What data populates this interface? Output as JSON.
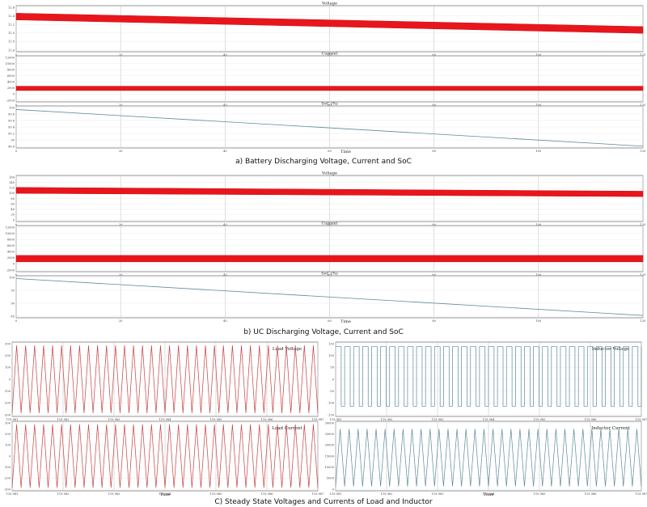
{
  "captions": {
    "a": "a) Battery Discharging Voltage, Current and SoC",
    "b": "b) UC Discharging Voltage, Current and SoC",
    "c": "C) Steady State Voltages and Currents of Load and Inductor"
  },
  "colors": {
    "trace_red": "#e8161c",
    "trace_teal": "#5b8c95",
    "trace_pink": "#c84040",
    "grid": "#c8c8c8",
    "frame": "#7a7a7a"
  },
  "chart_data": [
    {
      "id": "a-voltage",
      "type": "area",
      "title": "Voltage",
      "xlabel": "",
      "y_ticks": [
        "12.6",
        "12.4",
        "12.2",
        "12.0",
        "11.8",
        "11.6"
      ],
      "ylim": [
        11.6,
        12.7
      ],
      "x_ticks": [
        "0",
        "20",
        "40",
        "60",
        "80",
        "100",
        "120"
      ],
      "xlim": [
        0,
        120
      ],
      "band": {
        "x": [
          0,
          120
        ],
        "upper": [
          12.52,
          12.2
        ],
        "lower": [
          12.36,
          12.04
        ]
      }
    },
    {
      "id": "a-current",
      "type": "area",
      "title": "Current",
      "xlabel": "",
      "y_ticks": [
        "12000",
        "10000",
        "8000",
        "6000",
        "4000",
        "2000",
        "0",
        "-2000"
      ],
      "ylim": [
        -2500,
        12500
      ],
      "x_ticks": [
        "0",
        "20",
        "40",
        "60",
        "80",
        "100",
        "120"
      ],
      "xlim": [
        0,
        120
      ],
      "band": {
        "x": [
          0,
          120
        ],
        "upper": [
          2600,
          2600
        ],
        "lower": [
          1200,
          1200
        ]
      }
    },
    {
      "id": "a-soc",
      "type": "line",
      "title": "SoC (%)",
      "xlabel": "Time",
      "y_ticks": [
        "100",
        "99.8",
        "99.6",
        "99.4",
        "99.2",
        "99",
        "98.8"
      ],
      "ylim": [
        98.7,
        100.1
      ],
      "x_ticks": [
        "0",
        "20",
        "40",
        "60",
        "80",
        "100",
        "120"
      ],
      "xlim": [
        0,
        120
      ],
      "series": [
        {
          "x": [
            0,
            120
          ],
          "values": [
            99.98,
            98.76
          ]
        }
      ]
    },
    {
      "id": "b-voltage",
      "type": "area",
      "title": "Voltage",
      "xlabel": "",
      "y_ticks": [
        "160",
        "140",
        "120",
        "100",
        "80",
        "60",
        "40",
        "20",
        "0"
      ],
      "ylim": [
        0,
        170
      ],
      "x_ticks": [
        "0",
        "20",
        "40",
        "60",
        "80",
        "100",
        "120"
      ],
      "xlim": [
        0,
        120
      ],
      "band": {
        "x": [
          0,
          120
        ],
        "upper": [
          126,
          112
        ],
        "lower": [
          104,
          92
        ]
      }
    },
    {
      "id": "b-current",
      "type": "area",
      "title": "Current",
      "xlabel": "",
      "y_ticks": [
        "12000",
        "10000",
        "8000",
        "6000",
        "4000",
        "2000",
        "0",
        "-2000"
      ],
      "ylim": [
        -2500,
        12500
      ],
      "x_ticks": [
        "0",
        "20",
        "40",
        "60",
        "80",
        "100",
        "120"
      ],
      "xlim": [
        0,
        120
      ],
      "band": {
        "x": [
          0,
          120
        ],
        "upper": [
          2800,
          2800
        ],
        "lower": [
          700,
          700
        ]
      }
    },
    {
      "id": "b-soc",
      "type": "line",
      "title": "SoC (%)",
      "xlabel": "Time",
      "y_ticks": [
        "100",
        "95",
        "90",
        "85"
      ],
      "ylim": [
        83,
        101
      ],
      "x_ticks": [
        "0",
        "20",
        "40",
        "60",
        "80",
        "100",
        "120"
      ],
      "xlim": [
        0,
        120
      ],
      "series": [
        {
          "x": [
            0,
            120
          ],
          "values": [
            99.8,
            84.0
          ]
        }
      ]
    },
    {
      "id": "c-load-voltage",
      "type": "line",
      "title": "Load Voltage",
      "xlabel": "",
      "y_ticks": [
        "300",
        "200",
        "100",
        "0",
        "-100",
        "-200",
        "-300"
      ],
      "ylim": [
        -330,
        330
      ],
      "x_ticks": [
        "119.981",
        "119.982",
        "119.983",
        "119.984",
        "119.985",
        "119.986",
        "119.987"
      ],
      "xlim": [
        119.9805,
        119.9875
      ],
      "waveform": {
        "shape": "triangle",
        "cycles": 34,
        "amplitude": 300
      }
    },
    {
      "id": "c-load-current",
      "type": "line",
      "title": "Load Current",
      "xlabel": "Time",
      "y_ticks": [
        "300",
        "200",
        "100",
        "0",
        "-100",
        "-200",
        "-300"
      ],
      "ylim": [
        -330,
        330
      ],
      "x_ticks": [
        "119.981",
        "119.982",
        "119.983",
        "119.984",
        "119.985",
        "119.986",
        "119.987"
      ],
      "xlim": [
        119.9805,
        119.9875
      ],
      "waveform": {
        "shape": "triangle",
        "cycles": 34,
        "amplitude": 300
      }
    },
    {
      "id": "c-inductor-voltage",
      "type": "line",
      "title": "Inductor Voltage",
      "xlabel": "",
      "y_ticks": [
        "150",
        "100",
        "50",
        "0",
        "-50",
        "-100",
        "-150"
      ],
      "ylim": [
        -165,
        165
      ],
      "x_ticks": [
        "119.981",
        "119.982",
        "119.983",
        "119.984",
        "119.985",
        "119.986",
        "119.987"
      ],
      "xlim": [
        119.9805,
        119.9875
      ],
      "waveform": {
        "shape": "square",
        "cycles": 34,
        "high": 145,
        "low": -120
      }
    },
    {
      "id": "c-inductor-current",
      "type": "line",
      "title": "Inductor Current",
      "xlabel": "Time",
      "y_ticks": [
        "30000",
        "25000",
        "20000",
        "15000",
        "10000",
        "5000",
        "0"
      ],
      "ylim": [
        -1000,
        31000
      ],
      "x_ticks": [
        "119.981",
        "119.982",
        "119.983",
        "119.984",
        "119.985",
        "119.986",
        "119.987"
      ],
      "xlim": [
        119.9805,
        119.9875
      ],
      "waveform": {
        "shape": "triangle",
        "cycles": 34,
        "high": 27500,
        "low": 1000
      }
    }
  ]
}
